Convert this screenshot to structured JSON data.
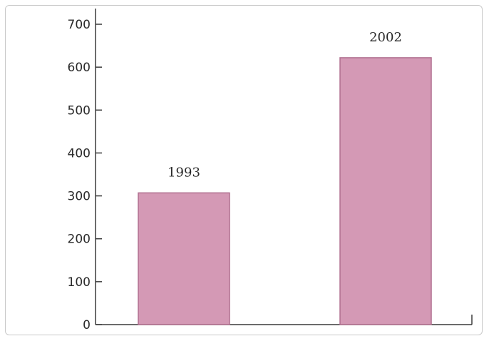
{
  "chart_data": {
    "type": "bar",
    "title": "",
    "xlabel": "",
    "ylabel": "",
    "categories": [
      "1993",
      "2002"
    ],
    "values": [
      307,
      622
    ],
    "ylim": [
      0,
      700
    ],
    "yticks": [
      0,
      100,
      200,
      300,
      400,
      500,
      600,
      700
    ],
    "grid": false,
    "bar_color": "#d499b5",
    "bar_edge_color": "#b06f8f",
    "axis_color": "#3a3a3a"
  }
}
